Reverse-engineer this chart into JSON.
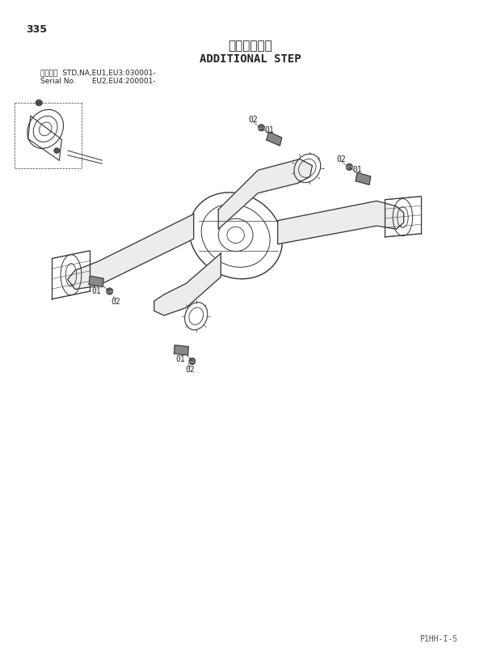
{
  "page_number": "335",
  "title_japanese": "追加ステップ",
  "title_english": "ADDITIONAL STEP",
  "serial_line1": "適用号機  STD,NA,EU1,EU3:030001-",
  "serial_line2": "Serial No.       EU2,EU4:200001-",
  "footer": "P1HH-I-5",
  "bg_color": "#ffffff",
  "line_color": "#333333",
  "text_color": "#222222",
  "fig_width": 6.2,
  "fig_height": 8.17,
  "dpi": 100
}
